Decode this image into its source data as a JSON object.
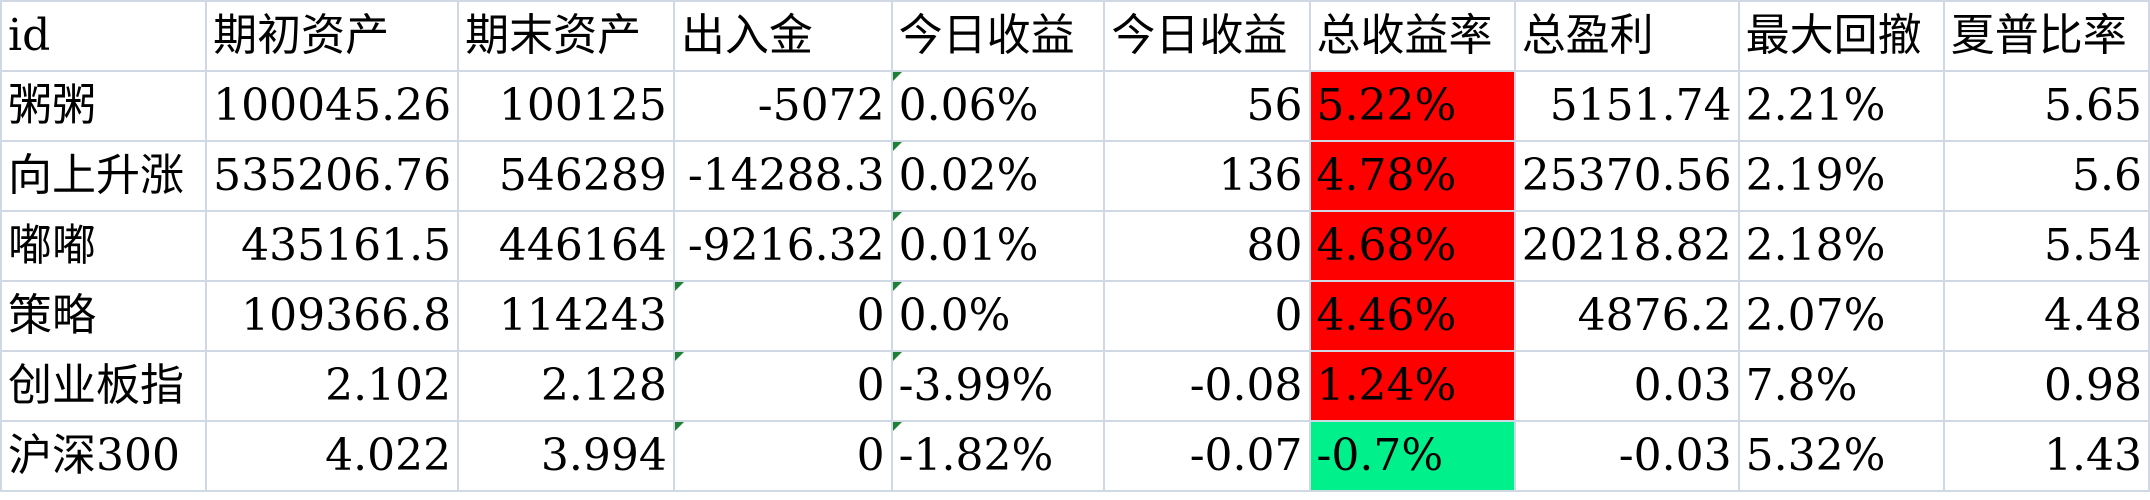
{
  "colors": {
    "red": "#ff0000",
    "green": "#00f08c",
    "gridline": "#d0d7e5",
    "error_flag": "#1e7f36"
  },
  "headers": [
    "id",
    "期初资产",
    "期末资产",
    "出入金",
    "今日收益",
    "今日收益",
    "总收益率",
    "总盈利",
    "最大回撤",
    "夏普比率"
  ],
  "rows": [
    [
      "粥粥",
      "100045.26",
      "100125",
      "-5072",
      "0.06%",
      "56",
      "5.22%",
      "5151.74",
      "2.21%",
      "5.65"
    ],
    [
      "向上升涨",
      "535206.76",
      "546289",
      "-14288.3",
      "0.02%",
      "136",
      "4.78%",
      "25370.56",
      "2.19%",
      "5.6"
    ],
    [
      "嘟嘟",
      "435161.5",
      "446164",
      "-9216.32",
      "0.01%",
      "80",
      "4.68%",
      "20218.82",
      "2.18%",
      "5.54"
    ],
    [
      "策略",
      "109366.8",
      "114243",
      "0",
      "0.0%",
      "0",
      "4.46%",
      "4876.2",
      "2.07%",
      "4.48"
    ],
    [
      "创业板指",
      "2.102",
      "2.128",
      "0",
      "-3.99%",
      "-0.08",
      "1.24%",
      "0.03",
      "7.8%",
      "0.98"
    ],
    [
      "沪深300",
      "4.022",
      "3.994",
      "0",
      "-1.82%",
      "-0.07",
      "-0.7%",
      "-0.03",
      "5.32%",
      "1.43"
    ]
  ]
}
